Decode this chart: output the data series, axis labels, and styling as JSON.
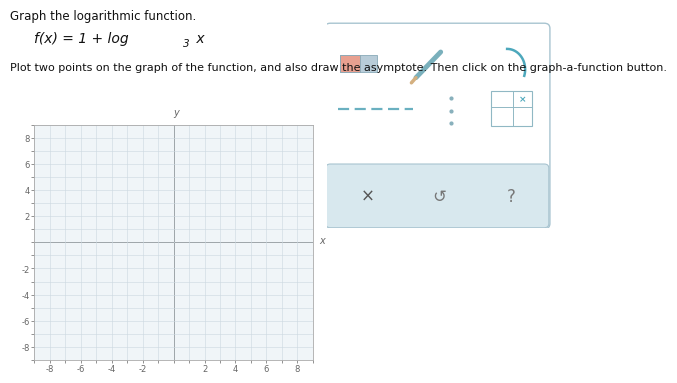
{
  "title_line1": "Graph the logarithmic function.",
  "formula_text": "f(x) = 1 + log",
  "formula_sub": "3",
  "formula_end": " x",
  "instructions": "Plot two points on the graph of the function, and also draw the asymptote. Then click on the graph-a-function button.",
  "graph_xlim": [
    -9,
    9
  ],
  "graph_ylim": [
    -9,
    9
  ],
  "graph_xticks": [
    -8,
    -6,
    -4,
    -2,
    2,
    4,
    6,
    8
  ],
  "graph_yticks": [
    -8,
    -6,
    -4,
    -2,
    2,
    4,
    6,
    8
  ],
  "grid_color": "#ccd8e0",
  "axis_color": "#666666",
  "background_color": "#ffffff",
  "graph_bg": "#f0f5f8",
  "text_color": "#111111",
  "title_fontsize": 8.5,
  "formula_fontsize": 10,
  "instructions_fontsize": 8.0,
  "panel_border": "#a8c4d0",
  "icon_color": "#4da8bc",
  "button_bg": "#d8e8ee",
  "tick_fontsize": 6
}
